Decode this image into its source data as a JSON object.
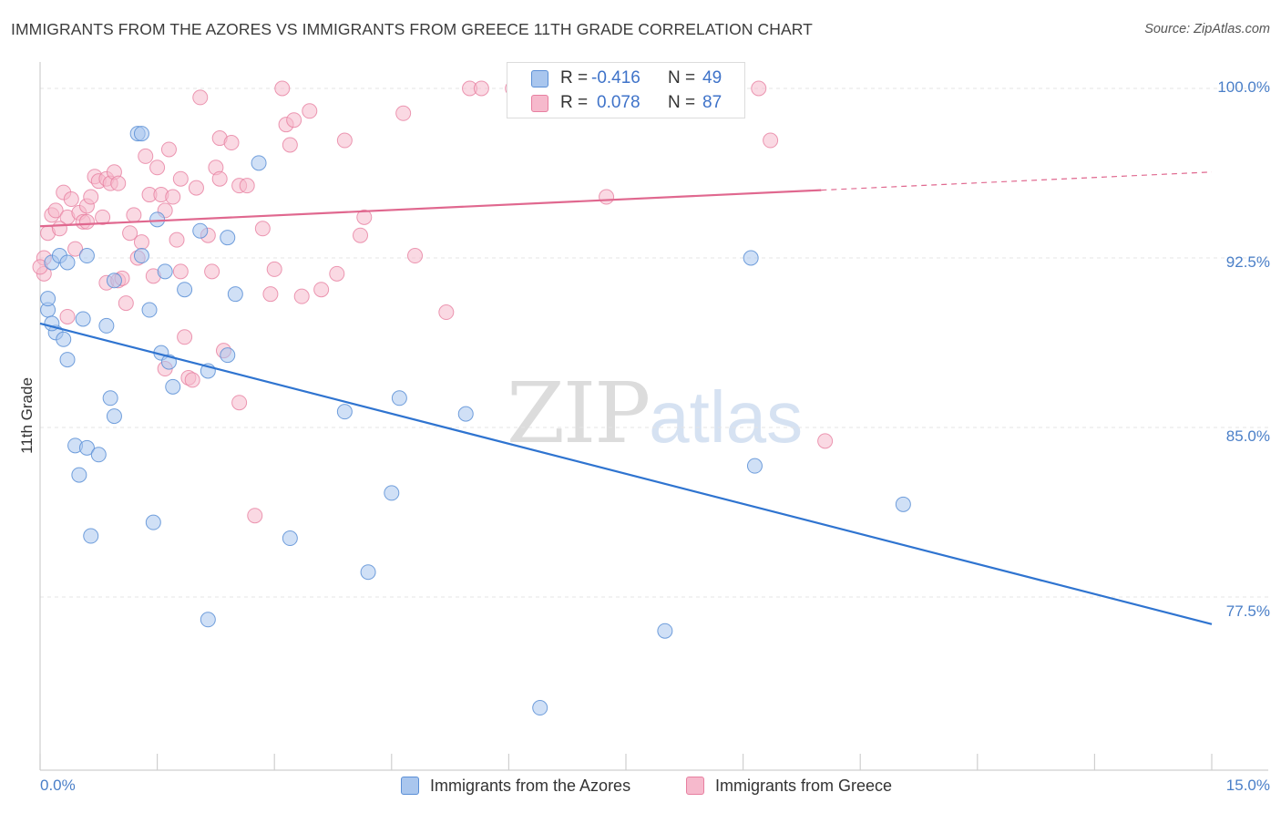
{
  "title": "IMMIGRANTS FROM THE AZORES VS IMMIGRANTS FROM GREECE 11TH GRADE CORRELATION CHART",
  "source": "Source: ZipAtlas.com",
  "watermark": {
    "zip": "ZIP",
    "atlas": "atlas"
  },
  "legend_top": [
    {
      "r_label": "R = ",
      "r_value": "-0.416",
      "n_label": "N = ",
      "n_value": "49"
    },
    {
      "r_label": "R = ",
      "r_value": "0.078",
      "n_label": "N = ",
      "n_value": "87"
    }
  ],
  "legend_bottom": [
    {
      "label": "Immigrants from the Azores"
    },
    {
      "label": "Immigrants from Greece"
    }
  ],
  "colors": {
    "azores_fill": "#a9c6ee",
    "azores_stroke": "#5b8fd6",
    "azores_line": "#2f74d0",
    "greece_fill": "#f6b9cc",
    "greece_stroke": "#e77fa0",
    "greece_line": "#e0688f",
    "tick_text": "#4a7fc8",
    "grid": "#e4e4e4"
  },
  "chart_data": {
    "type": "scatter",
    "xlabel": "",
    "ylabel": "11th Grade",
    "x_tick_labels": [
      "0.0%",
      "15.0%"
    ],
    "y_tick_labels": [
      "100.0%",
      "92.5%",
      "85.0%",
      "77.5%"
    ],
    "y_ticks": [
      100.0,
      92.5,
      85.0,
      77.5
    ],
    "xlim": [
      0,
      15
    ],
    "ylim": [
      70.0,
      100.8
    ],
    "grid": true,
    "series": [
      {
        "name": "Immigrants from the Azores",
        "R": -0.416,
        "N": 49,
        "trend": {
          "x": [
            0,
            15
          ],
          "y": [
            89.6,
            76.3
          ]
        },
        "points": [
          [
            0.1,
            90.2
          ],
          [
            0.1,
            90.7
          ],
          [
            0.15,
            92.3
          ],
          [
            0.2,
            89.2
          ],
          [
            0.25,
            92.6
          ],
          [
            0.3,
            88.9
          ],
          [
            0.35,
            88.0
          ],
          [
            0.45,
            84.2
          ],
          [
            0.55,
            89.8
          ],
          [
            0.6,
            84.1
          ],
          [
            0.5,
            82.9
          ],
          [
            0.65,
            80.2
          ],
          [
            0.75,
            83.8
          ],
          [
            0.85,
            89.5
          ],
          [
            0.9,
            86.3
          ],
          [
            0.95,
            85.5
          ],
          [
            0.6,
            92.6
          ],
          [
            0.95,
            91.5
          ],
          [
            1.25,
            98.0
          ],
          [
            1.3,
            98.0
          ],
          [
            1.3,
            92.6
          ],
          [
            1.4,
            90.2
          ],
          [
            1.45,
            80.8
          ],
          [
            1.5,
            94.2
          ],
          [
            1.55,
            88.3
          ],
          [
            1.6,
            91.9
          ],
          [
            1.65,
            87.9
          ],
          [
            1.7,
            86.8
          ],
          [
            1.85,
            91.1
          ],
          [
            2.05,
            93.7
          ],
          [
            2.15,
            87.5
          ],
          [
            2.15,
            76.5
          ],
          [
            2.4,
            93.4
          ],
          [
            2.4,
            88.2
          ],
          [
            2.5,
            90.9
          ],
          [
            2.8,
            96.7
          ],
          [
            3.2,
            80.1
          ],
          [
            3.9,
            85.7
          ],
          [
            4.2,
            78.6
          ],
          [
            4.5,
            82.1
          ],
          [
            4.6,
            86.3
          ],
          [
            5.45,
            85.6
          ],
          [
            6.4,
            72.6
          ],
          [
            8.0,
            76.0
          ],
          [
            9.1,
            92.5
          ],
          [
            9.15,
            83.3
          ],
          [
            11.05,
            81.6
          ],
          [
            0.35,
            92.3
          ],
          [
            0.15,
            89.6
          ]
        ]
      },
      {
        "name": "Immigrants from Greece",
        "R": 0.078,
        "N": 87,
        "trend": {
          "x": [
            0,
            10.0
          ],
          "y": [
            93.9,
            95.5
          ]
        },
        "trend_dashed": {
          "x": [
            10.0,
            15
          ],
          "y": [
            95.5,
            96.3
          ]
        },
        "points": [
          [
            0.05,
            92.5
          ],
          [
            0.05,
            91.8
          ],
          [
            0.1,
            93.6
          ],
          [
            0.15,
            94.4
          ],
          [
            0.2,
            94.6
          ],
          [
            0.3,
            95.4
          ],
          [
            0.35,
            94.3
          ],
          [
            0.35,
            89.9
          ],
          [
            0.4,
            95.1
          ],
          [
            0.45,
            92.9
          ],
          [
            0.5,
            94.5
          ],
          [
            0.55,
            94.1
          ],
          [
            0.6,
            94.8
          ],
          [
            0.6,
            94.1
          ],
          [
            0.65,
            95.2
          ],
          [
            0.7,
            96.1
          ],
          [
            0.75,
            95.9
          ],
          [
            0.8,
            94.3
          ],
          [
            0.85,
            91.4
          ],
          [
            0.85,
            96.0
          ],
          [
            0.9,
            95.8
          ],
          [
            0.95,
            96.3
          ],
          [
            1.0,
            95.8
          ],
          [
            1.0,
            91.5
          ],
          [
            1.05,
            91.6
          ],
          [
            1.1,
            90.5
          ],
          [
            1.15,
            93.6
          ],
          [
            1.2,
            94.4
          ],
          [
            1.25,
            92.5
          ],
          [
            1.3,
            93.2
          ],
          [
            1.35,
            97.0
          ],
          [
            1.4,
            95.3
          ],
          [
            1.45,
            91.7
          ],
          [
            1.5,
            96.5
          ],
          [
            1.55,
            95.3
          ],
          [
            1.6,
            94.6
          ],
          [
            1.6,
            87.6
          ],
          [
            1.65,
            97.3
          ],
          [
            1.7,
            95.2
          ],
          [
            1.75,
            93.3
          ],
          [
            1.8,
            91.9
          ],
          [
            1.8,
            96.0
          ],
          [
            1.85,
            89.0
          ],
          [
            1.9,
            87.2
          ],
          [
            1.95,
            87.1
          ],
          [
            2.0,
            95.6
          ],
          [
            2.05,
            99.6
          ],
          [
            2.15,
            93.5
          ],
          [
            2.2,
            91.9
          ],
          [
            2.25,
            96.5
          ],
          [
            2.3,
            96.0
          ],
          [
            2.3,
            97.8
          ],
          [
            2.35,
            88.4
          ],
          [
            2.45,
            97.6
          ],
          [
            2.55,
            86.1
          ],
          [
            2.55,
            95.7
          ],
          [
            2.65,
            95.7
          ],
          [
            2.75,
            81.1
          ],
          [
            2.85,
            93.8
          ],
          [
            2.95,
            90.9
          ],
          [
            3.0,
            92.0
          ],
          [
            3.1,
            100.0
          ],
          [
            3.15,
            98.4
          ],
          [
            3.2,
            97.5
          ],
          [
            3.25,
            98.6
          ],
          [
            3.35,
            90.8
          ],
          [
            3.45,
            99.0
          ],
          [
            3.6,
            91.1
          ],
          [
            3.8,
            91.8
          ],
          [
            3.9,
            97.7
          ],
          [
            4.1,
            93.5
          ],
          [
            4.15,
            94.3
          ],
          [
            4.65,
            98.9
          ],
          [
            4.8,
            92.6
          ],
          [
            5.2,
            90.1
          ],
          [
            5.5,
            100.0
          ],
          [
            5.65,
            100.0
          ],
          [
            6.05,
            100.0
          ],
          [
            6.15,
            100.0
          ],
          [
            6.55,
            100.0
          ],
          [
            6.75,
            100.0
          ],
          [
            7.25,
            95.2
          ],
          [
            9.2,
            100.0
          ],
          [
            9.35,
            97.7
          ],
          [
            10.05,
            84.4
          ],
          [
            0.0,
            92.1
          ],
          [
            0.25,
            93.8
          ]
        ]
      }
    ]
  }
}
